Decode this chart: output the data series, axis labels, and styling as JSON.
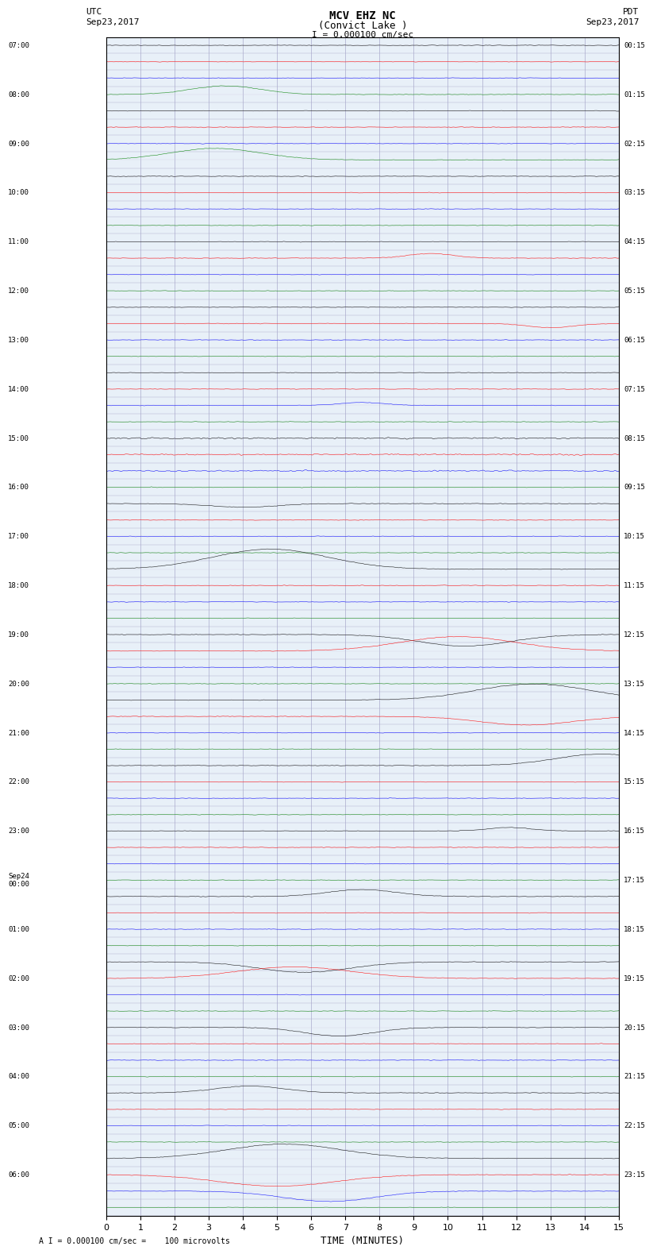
{
  "title_line1": "MCV EHZ NC",
  "title_line2": "(Convict Lake )",
  "scale_label": "I = 0.000100 cm/sec",
  "left_label_top": "UTC",
  "left_label_date": "Sep23,2017",
  "right_label_top": "PDT",
  "right_label_date": "Sep23,2017",
  "bottom_label": "TIME (MINUTES)",
  "footer_label": "A I = 0.000100 cm/sec =    100 microvolts",
  "left_times": [
    "07:00",
    "",
    "",
    "08:00",
    "",
    "",
    "09:00",
    "",
    "",
    "10:00",
    "",
    "",
    "11:00",
    "",
    "",
    "12:00",
    "",
    "",
    "13:00",
    "",
    "",
    "14:00",
    "",
    "",
    "15:00",
    "",
    "",
    "16:00",
    "",
    "",
    "17:00",
    "",
    "",
    "18:00",
    "",
    "",
    "19:00",
    "",
    "",
    "20:00",
    "",
    "",
    "21:00",
    "",
    "",
    "22:00",
    "",
    "",
    "23:00",
    "",
    "",
    "Sep24\n00:00",
    "",
    "",
    "01:00",
    "",
    "",
    "02:00",
    "",
    "",
    "03:00",
    "",
    "",
    "04:00",
    "",
    "",
    "05:00",
    "",
    "",
    "06:00",
    "",
    ""
  ],
  "right_times": [
    "00:15",
    "",
    "",
    "01:15",
    "",
    "",
    "02:15",
    "",
    "",
    "03:15",
    "",
    "",
    "04:15",
    "",
    "",
    "05:15",
    "",
    "",
    "06:15",
    "",
    "",
    "07:15",
    "",
    "",
    "08:15",
    "",
    "",
    "09:15",
    "",
    "",
    "10:15",
    "",
    "",
    "11:15",
    "",
    "",
    "12:15",
    "",
    "",
    "13:15",
    "",
    "",
    "14:15",
    "",
    "",
    "15:15",
    "",
    "",
    "16:15",
    "",
    "",
    "17:15",
    "",
    "",
    "18:15",
    "",
    "",
    "19:15",
    "",
    "",
    "20:15",
    "",
    "",
    "21:15",
    "",
    "",
    "22:15",
    "",
    "",
    "23:15",
    "",
    ""
  ],
  "num_rows": 72,
  "colors_cycle": [
    "black",
    "red",
    "blue",
    "green"
  ],
  "bg_color": "#e8f0f8",
  "grid_color": "#aaaacc",
  "trace_amplitude": 0.35,
  "x_min": 0,
  "x_max": 15,
  "x_ticks": [
    0,
    1,
    2,
    3,
    4,
    5,
    6,
    7,
    8,
    9,
    10,
    11,
    12,
    13,
    14,
    15
  ]
}
